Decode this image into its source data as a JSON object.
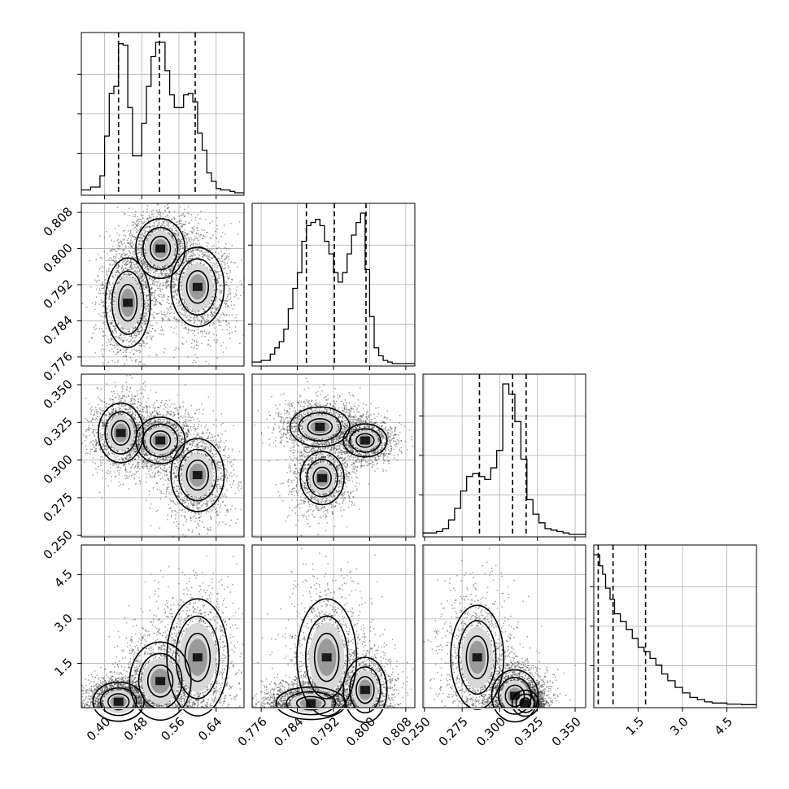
{
  "chart_data": {
    "type": "corner",
    "parameters": [
      {
        "range": [
          0.35,
          0.7
        ],
        "ticks": [
          0.4,
          0.48,
          0.56,
          0.64
        ],
        "tick_labels": [
          "0.40",
          "0.48",
          "0.56",
          "0.64"
        ]
      },
      {
        "range": [
          0.774,
          0.81
        ],
        "ticks": [
          0.776,
          0.784,
          0.792,
          0.8,
          0.808
        ],
        "tick_labels": [
          "0.776",
          "0.784",
          "0.792",
          "0.800",
          "0.808"
        ]
      },
      {
        "range": [
          0.249,
          0.357
        ],
        "ticks": [
          0.25,
          0.275,
          0.3,
          0.325,
          0.35
        ],
        "tick_labels": [
          "0.250",
          "0.275",
          "0.300",
          "0.325",
          "0.350"
        ]
      },
      {
        "range": [
          0.0,
          5.5
        ],
        "ticks": [
          1.5,
          3.0,
          4.5
        ],
        "tick_labels": [
          "1.5",
          "3.0",
          "4.5"
        ]
      }
    ],
    "quantiles": [
      [
        0.43,
        0.518,
        0.595
      ],
      [
        0.786,
        0.7922,
        0.7992
      ],
      [
        0.2865,
        0.3085,
        0.3175
      ],
      [
        0.15,
        0.65,
        1.75
      ]
    ],
    "histograms": [
      {
        "edges": [
          0.35,
          0.37,
          0.39,
          0.4,
          0.41,
          0.42,
          0.43,
          0.44,
          0.45,
          0.46,
          0.48,
          0.49,
          0.5,
          0.51,
          0.52,
          0.53,
          0.54,
          0.55,
          0.56,
          0.57,
          0.58,
          0.59,
          0.6,
          0.61,
          0.62,
          0.63,
          0.64,
          0.65,
          0.67,
          0.68,
          0.7
        ],
        "counts": [
          2,
          4,
          12,
          40,
          70,
          75,
          105,
          104,
          60,
          26,
          49,
          75,
          96,
          106,
          106,
          86,
          69,
          60,
          60,
          69,
          70,
          64,
          42,
          30,
          14,
          8,
          3,
          2,
          1,
          0
        ]
      },
      {
        "edges": [
          0.774,
          0.776,
          0.778,
          0.779,
          0.78,
          0.781,
          0.782,
          0.783,
          0.784,
          0.785,
          0.786,
          0.787,
          0.788,
          0.789,
          0.79,
          0.791,
          0.792,
          0.793,
          0.794,
          0.795,
          0.796,
          0.797,
          0.798,
          0.799,
          0.8,
          0.801,
          0.802,
          0.803,
          0.804,
          0.805,
          0.806,
          0.808,
          0.81
        ],
        "counts": [
          1,
          2,
          6,
          10,
          14,
          22,
          35,
          48,
          58,
          78,
          88,
          90,
          92,
          88,
          78,
          70,
          58,
          52,
          58,
          70,
          82,
          90,
          96,
          60,
          30,
          10,
          5,
          2,
          1,
          0,
          0,
          0
        ]
      },
      {
        "edges": [
          0.249,
          0.253,
          0.258,
          0.262,
          0.266,
          0.27,
          0.274,
          0.278,
          0.282,
          0.286,
          0.29,
          0.294,
          0.298,
          0.302,
          0.306,
          0.31,
          0.314,
          0.318,
          0.322,
          0.326,
          0.33,
          0.334,
          0.338,
          0.342,
          0.346,
          0.35,
          0.357
        ],
        "counts": [
          1,
          1,
          2,
          4,
          10,
          18,
          30,
          40,
          42,
          40,
          38,
          46,
          58,
          104,
          97,
          78,
          52,
          24,
          14,
          8,
          4,
          3,
          2,
          1,
          0,
          0
        ]
      },
      {
        "edges": [
          0.0,
          0.1,
          0.2,
          0.3,
          0.4,
          0.55,
          0.7,
          0.9,
          1.1,
          1.3,
          1.5,
          1.7,
          1.9,
          2.1,
          2.3,
          2.5,
          2.75,
          3.0,
          3.25,
          3.5,
          3.75,
          4.0,
          4.5,
          5.0,
          5.5
        ],
        "counts": [
          270,
          270,
          250,
          235,
          210,
          190,
          164,
          150,
          136,
          120,
          104,
          96,
          84,
          72,
          56,
          44,
          32,
          22,
          14,
          10,
          6,
          4,
          2,
          1
        ]
      }
    ],
    "pairs": [
      {
        "x": 0,
        "y": 1,
        "modes": [
          {
            "mx": 0.45,
            "my": 0.788,
            "sx": 0.022,
            "sy": 0.0045,
            "w": 1.0
          },
          {
            "mx": 0.52,
            "my": 0.8,
            "sx": 0.024,
            "sy": 0.003,
            "w": 1.0
          },
          {
            "mx": 0.6,
            "my": 0.7915,
            "sx": 0.026,
            "sy": 0.004,
            "w": 1.0
          }
        ]
      },
      {
        "x": 0,
        "y": 2,
        "modes": [
          {
            "mx": 0.435,
            "my": 0.318,
            "sx": 0.022,
            "sy": 0.009,
            "w": 1.0
          },
          {
            "mx": 0.52,
            "my": 0.313,
            "sx": 0.024,
            "sy": 0.007,
            "w": 1.0
          },
          {
            "mx": 0.6,
            "my": 0.29,
            "sx": 0.026,
            "sy": 0.011,
            "w": 1.0
          }
        ]
      },
      {
        "x": 0,
        "y": 3,
        "modes": [
          {
            "mx": 0.43,
            "my": 0.2,
            "sx": 0.025,
            "sy": 0.3,
            "w": 1.2
          },
          {
            "mx": 0.52,
            "my": 0.9,
            "sx": 0.03,
            "sy": 0.6,
            "w": 0.9
          },
          {
            "mx": 0.6,
            "my": 1.7,
            "sx": 0.03,
            "sy": 0.9,
            "w": 0.8
          }
        ]
      },
      {
        "x": 1,
        "y": 2,
        "modes": [
          {
            "mx": 0.789,
            "my": 0.322,
            "sx": 0.003,
            "sy": 0.006,
            "w": 1.0
          },
          {
            "mx": 0.799,
            "my": 0.313,
            "sx": 0.0022,
            "sy": 0.005,
            "w": 1.0
          },
          {
            "mx": 0.7895,
            "my": 0.288,
            "sx": 0.0022,
            "sy": 0.008,
            "w": 0.9
          }
        ]
      },
      {
        "x": 1,
        "y": 3,
        "modes": [
          {
            "mx": 0.787,
            "my": 0.15,
            "sx": 0.0035,
            "sy": 0.25,
            "w": 1.3
          },
          {
            "mx": 0.7905,
            "my": 1.7,
            "sx": 0.003,
            "sy": 0.9,
            "w": 0.8
          },
          {
            "mx": 0.799,
            "my": 0.6,
            "sx": 0.0022,
            "sy": 0.5,
            "w": 1.0
          }
        ]
      },
      {
        "x": 2,
        "y": 3,
        "modes": [
          {
            "mx": 0.285,
            "my": 1.7,
            "sx": 0.008,
            "sy": 0.8,
            "w": 0.9
          },
          {
            "mx": 0.31,
            "my": 0.4,
            "sx": 0.007,
            "sy": 0.4,
            "w": 1.2
          },
          {
            "mx": 0.317,
            "my": 0.15,
            "sx": 0.004,
            "sy": 0.2,
            "w": 1.0
          }
        ]
      }
    ]
  }
}
